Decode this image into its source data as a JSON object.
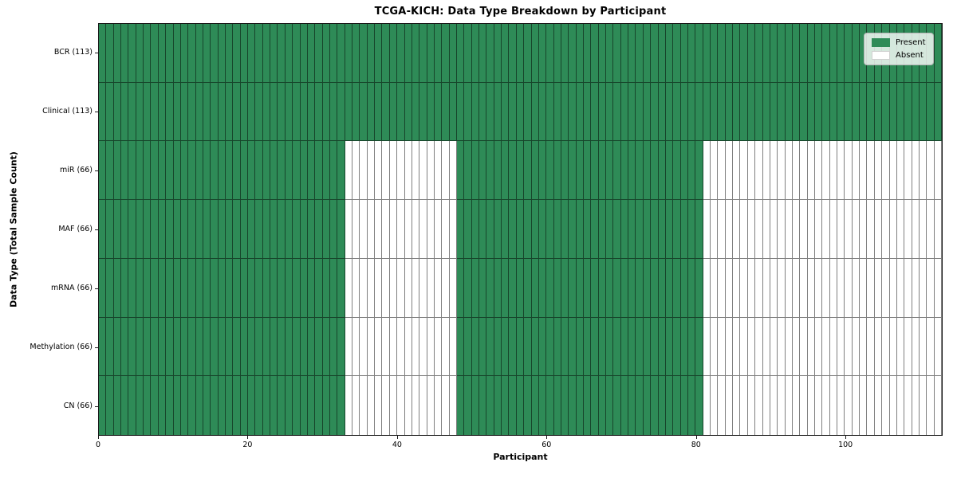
{
  "chart_data": {
    "type": "heatmap",
    "title": "TCGA-KICH: Data Type Breakdown by Participant",
    "xlabel": "Participant",
    "ylabel": "Data Type (Total Sample Count)",
    "n_participants": 113,
    "x_ticks": [
      0,
      20,
      40,
      60,
      80,
      100
    ],
    "legend": [
      "Present",
      "Absent"
    ],
    "legend_position": "upper-right",
    "grid": false,
    "colors": {
      "present": "#2e8b57",
      "absent": "#ffffff",
      "cell_edge": "rgba(0,0,0,0.5)",
      "spine": "#1a1a1a"
    },
    "rows": [
      {
        "label": "BCR (113)",
        "total": 113,
        "present_segments": [
          [
            0,
            113
          ]
        ]
      },
      {
        "label": "Clinical (113)",
        "total": 113,
        "present_segments": [
          [
            0,
            113
          ]
        ]
      },
      {
        "label": "miR (66)",
        "total": 66,
        "present_segments": [
          [
            0,
            33
          ],
          [
            48,
            81
          ]
        ]
      },
      {
        "label": "MAF (66)",
        "total": 66,
        "present_segments": [
          [
            0,
            33
          ],
          [
            48,
            81
          ]
        ]
      },
      {
        "label": "mRNA (66)",
        "total": 66,
        "present_segments": [
          [
            0,
            33
          ],
          [
            48,
            81
          ]
        ]
      },
      {
        "label": "Methylation (66)",
        "total": 66,
        "present_segments": [
          [
            0,
            33
          ],
          [
            48,
            81
          ]
        ]
      },
      {
        "label": "CN (66)",
        "total": 66,
        "present_segments": [
          [
            0,
            33
          ],
          [
            48,
            81
          ]
        ]
      }
    ]
  }
}
